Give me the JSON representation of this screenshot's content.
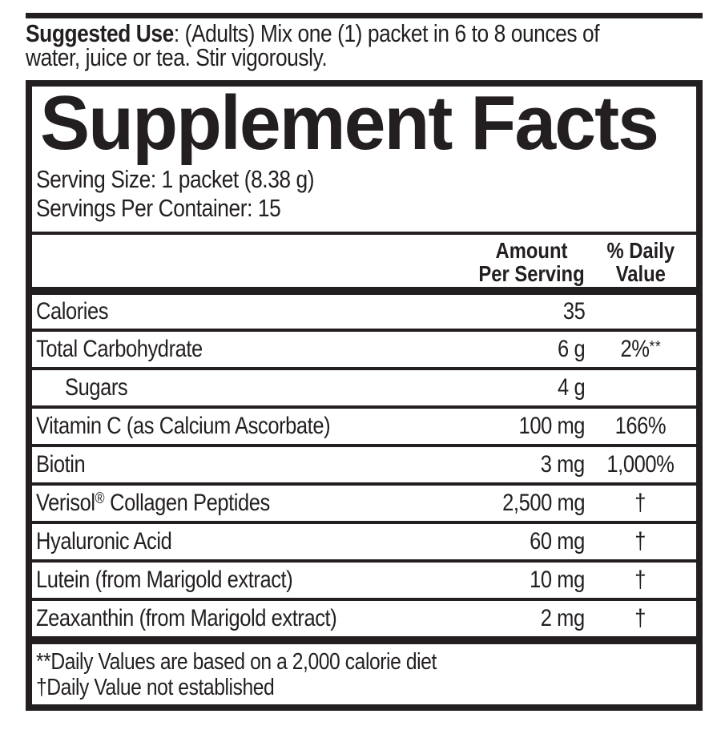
{
  "colors": {
    "ink": "#231f20",
    "background": "#ffffff"
  },
  "suggested_use": {
    "label": "Suggested Use",
    "line1_rest": ": (Adults) Mix one (1) packet in 6 to 8 ounces of",
    "line2": "water, juice or tea. Stir vigorously."
  },
  "panel": {
    "title": "Supplement Facts",
    "serving_size": "Serving Size: 1 packet (8.38 g)",
    "servings_per_container": "Servings Per Container: 15",
    "header": {
      "amount_line1": "Amount",
      "amount_line2": "Per Serving",
      "dv_line1": "% Daily",
      "dv_line2": "Value"
    },
    "rows": [
      {
        "name": "Calories",
        "name_sup": "",
        "name_rest": "",
        "amount": "35",
        "dv": "",
        "dv_sup": ""
      },
      {
        "name": "Total Carbohydrate",
        "name_sup": "",
        "name_rest": "",
        "amount": "6 g",
        "dv": "2%",
        "dv_sup": "**"
      },
      {
        "name": "Sugars",
        "name_sup": "",
        "name_rest": "",
        "amount": "4 g",
        "dv": "",
        "dv_sup": ""
      },
      {
        "name": "Vitamin C (as Calcium Ascorbate)",
        "name_sup": "",
        "name_rest": "",
        "amount": "100 mg",
        "dv": "166%",
        "dv_sup": ""
      },
      {
        "name": "Biotin",
        "name_sup": "",
        "name_rest": "",
        "amount": "3 mg",
        "dv": "1,000%",
        "dv_sup": ""
      },
      {
        "name": "Verisol",
        "name_sup": "®",
        "name_rest": " Collagen Peptides",
        "amount": "2,500 mg",
        "dv": "†",
        "dv_sup": ""
      },
      {
        "name": "Hyaluronic Acid",
        "name_sup": "",
        "name_rest": "",
        "amount": "60 mg",
        "dv": "†",
        "dv_sup": ""
      },
      {
        "name": "Lutein (from Marigold extract)",
        "name_sup": "",
        "name_rest": "",
        "amount": "10 mg",
        "dv": "†",
        "dv_sup": ""
      },
      {
        "name": "Zeaxanthin (from Marigold extract)",
        "name_sup": "",
        "name_rest": "",
        "amount": "2 mg",
        "dv": "†",
        "dv_sup": ""
      }
    ],
    "footnotes": {
      "line1": "**Daily Values are based on a 2,000 calorie diet",
      "line2": "†Daily Value not established"
    }
  }
}
